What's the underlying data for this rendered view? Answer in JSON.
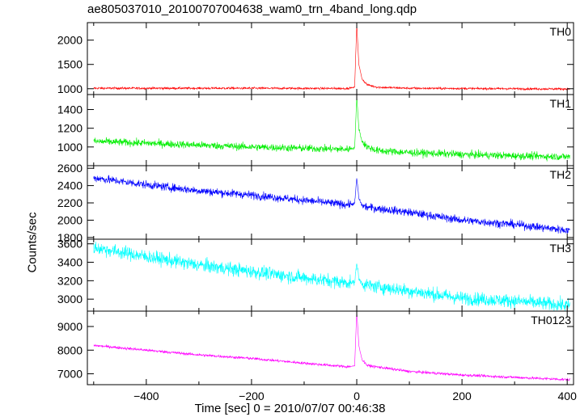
{
  "chart_data": {
    "type": "line",
    "title": "ae805037010_20100707004638_wam0_trn_4band_long.qdp",
    "xlabel": "Time [sec] 0 = 2010/07/07 00:46:38",
    "ylabel": "Counts/sec",
    "xlim": [
      -512,
      412
    ],
    "x_ticks": [
      -400,
      -200,
      0,
      200,
      400
    ],
    "grid": false,
    "panels": [
      {
        "name": "TH0",
        "color": "#ff0000",
        "ylim": [
          880,
          2360
        ],
        "y_ticks": [
          1000,
          1500,
          2000
        ],
        "points": [
          [
            -500,
            1010
          ],
          [
            -400,
            1010
          ],
          [
            -200,
            1010
          ],
          [
            -20,
            1005
          ],
          [
            -4,
            1030
          ],
          [
            0,
            2320
          ],
          [
            4,
            1500
          ],
          [
            10,
            1200
          ],
          [
            20,
            1080
          ],
          [
            40,
            1030
          ],
          [
            100,
            1010
          ],
          [
            200,
            1005
          ],
          [
            300,
            1000
          ],
          [
            405,
            995
          ]
        ],
        "noise": 22
      },
      {
        "name": "TH1",
        "color": "#00ee00",
        "ylim": [
          800,
          1560
        ],
        "y_ticks": [
          1000,
          1200,
          1400
        ],
        "points": [
          [
            -500,
            1060
          ],
          [
            -400,
            1040
          ],
          [
            -200,
            1000
          ],
          [
            -20,
            975
          ],
          [
            -4,
            990
          ],
          [
            0,
            1530
          ],
          [
            4,
            1200
          ],
          [
            10,
            1060
          ],
          [
            20,
            1000
          ],
          [
            40,
            960
          ],
          [
            100,
            940
          ],
          [
            200,
            920
          ],
          [
            300,
            905
          ],
          [
            405,
            895
          ]
        ],
        "noise": 38
      },
      {
        "name": "TH2",
        "color": "#0000ff",
        "ylim": [
          1780,
          2630
        ],
        "y_ticks": [
          1800,
          2000,
          2200,
          2400,
          2600
        ],
        "points": [
          [
            -500,
            2490
          ],
          [
            -400,
            2410
          ],
          [
            -300,
            2340
          ],
          [
            -200,
            2290
          ],
          [
            -100,
            2230
          ],
          [
            -20,
            2180
          ],
          [
            -4,
            2190
          ],
          [
            0,
            2490
          ],
          [
            4,
            2250
          ],
          [
            10,
            2170
          ],
          [
            20,
            2150
          ],
          [
            100,
            2090
          ],
          [
            200,
            2000
          ],
          [
            300,
            1950
          ],
          [
            405,
            1880
          ]
        ],
        "noise": 45
      },
      {
        "name": "TH3",
        "color": "#00ffff",
        "ylim": [
          2870,
          3650
        ],
        "y_ticks": [
          3000,
          3200,
          3400,
          3600
        ],
        "points": [
          [
            -500,
            3560
          ],
          [
            -400,
            3460
          ],
          [
            -300,
            3370
          ],
          [
            -200,
            3300
          ],
          [
            -100,
            3230
          ],
          [
            -20,
            3180
          ],
          [
            -4,
            3180
          ],
          [
            0,
            3400
          ],
          [
            4,
            3220
          ],
          [
            10,
            3170
          ],
          [
            20,
            3150
          ],
          [
            100,
            3090
          ],
          [
            200,
            3010
          ],
          [
            300,
            2980
          ],
          [
            405,
            2930
          ]
        ],
        "noise": 70
      },
      {
        "name": "TH0123",
        "color": "#ff00ff",
        "ylim": [
          6540,
          9650
        ],
        "y_ticks": [
          7000,
          8000,
          9000
        ],
        "points": [
          [
            -500,
            8200
          ],
          [
            -400,
            8000
          ],
          [
            -300,
            7800
          ],
          [
            -200,
            7650
          ],
          [
            -100,
            7450
          ],
          [
            -20,
            7300
          ],
          [
            -4,
            7330
          ],
          [
            0,
            9650
          ],
          [
            4,
            8200
          ],
          [
            10,
            7600
          ],
          [
            20,
            7350
          ],
          [
            100,
            7100
          ],
          [
            200,
            6950
          ],
          [
            300,
            6850
          ],
          [
            405,
            6750
          ]
        ],
        "noise": 55
      }
    ]
  }
}
